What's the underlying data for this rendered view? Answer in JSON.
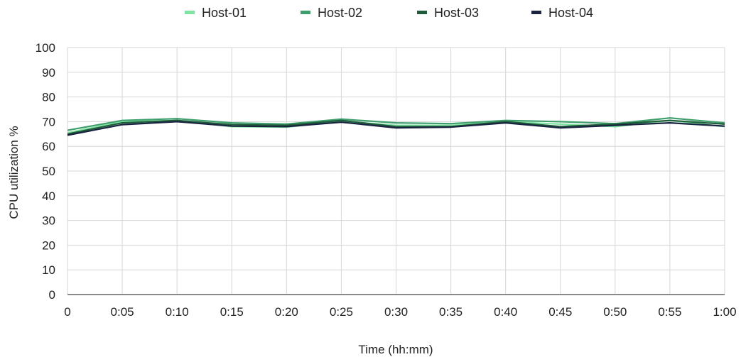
{
  "chart_data": {
    "type": "line",
    "title": "",
    "xlabel": "Time (hh:mm)",
    "ylabel": "CPU utilization %",
    "categories": [
      "0",
      "0:05",
      "0:10",
      "0:15",
      "0:20",
      "0:25",
      "0:30",
      "0:35",
      "0:40",
      "0:45",
      "0:50",
      "0:55",
      "1:00"
    ],
    "yticks": [
      "0",
      "10",
      "20",
      "30",
      "40",
      "50",
      "60",
      "70",
      "80",
      "90",
      "100"
    ],
    "ylim": [
      0,
      100
    ],
    "grid": true,
    "legend_position": "top",
    "series": [
      {
        "name": "Host-01",
        "color": "#7fe3a2",
        "values": [
          65.5,
          70.0,
          70.5,
          68.0,
          67.8,
          70.2,
          68.5,
          68.5,
          70.0,
          69.0,
          68.0,
          70.5,
          68.0
        ]
      },
      {
        "name": "Host-02",
        "color": "#3e9e6c",
        "values": [
          66.5,
          70.5,
          71.2,
          69.5,
          69.0,
          71.0,
          69.5,
          69.2,
          70.5,
          70.0,
          69.2,
          71.5,
          69.5
        ]
      },
      {
        "name": "Host-03",
        "color": "#1f5c3a",
        "values": [
          65.0,
          69.5,
          70.5,
          68.8,
          68.5,
          70.5,
          68.0,
          68.0,
          70.0,
          68.0,
          69.0,
          70.5,
          69.0
        ]
      },
      {
        "name": "Host-04",
        "color": "#1a2340",
        "values": [
          64.5,
          68.8,
          70.0,
          68.2,
          68.0,
          69.8,
          67.5,
          67.8,
          69.5,
          67.5,
          68.5,
          69.5,
          68.2
        ]
      }
    ]
  }
}
